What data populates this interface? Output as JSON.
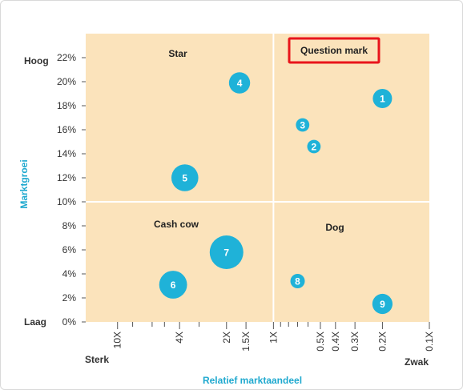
{
  "chart_data": {
    "type": "scatter",
    "subtype": "bubble-matrix",
    "xlabel": "Relatief marktaandeel",
    "ylabel": "Marktgroei",
    "x_axis": {
      "scale": "log",
      "reversed": true,
      "tick_labels": [
        "10X",
        "4X",
        "2X",
        "1.5X",
        "1X",
        "0.5X",
        "0.4X",
        "0.3X",
        "0.2X",
        "0.1X"
      ],
      "tick_values": [
        10,
        4,
        2,
        1.5,
        1,
        0.5,
        0.4,
        0.3,
        0.2,
        0.1
      ],
      "minor_ticks": [
        8,
        6,
        5,
        3,
        0.9,
        0.8,
        0.7,
        0.6
      ],
      "xlim": [
        16,
        0.1
      ],
      "divider": 1,
      "left_end_label": "Sterk",
      "right_end_label": "Zwak"
    },
    "y_axis": {
      "tick_labels": [
        "0%",
        "2%",
        "4%",
        "6%",
        "8%",
        "10%",
        "12%",
        "14%",
        "16%",
        "18%",
        "20%",
        "22%"
      ],
      "tick_values": [
        0,
        2,
        4,
        6,
        8,
        10,
        12,
        14,
        16,
        18,
        20,
        22
      ],
      "ylim": [
        0,
        24
      ],
      "divider": 10,
      "top_end_label": "Hoog",
      "bottom_end_label": "Laag"
    },
    "quadrants": [
      {
        "key": "star",
        "label": "Star",
        "highlighted": false
      },
      {
        "key": "question",
        "label": "Question mark",
        "highlighted": true
      },
      {
        "key": "cashcow",
        "label": "Cash cow",
        "highlighted": false
      },
      {
        "key": "dog",
        "label": "Dog",
        "highlighted": false
      }
    ],
    "points": [
      {
        "label": "1",
        "x": 0.2,
        "y": 18.6,
        "size": 1.0
      },
      {
        "label": "2",
        "x": 0.55,
        "y": 14.6,
        "size": 0.7
      },
      {
        "label": "3",
        "x": 0.65,
        "y": 16.4,
        "size": 0.7
      },
      {
        "label": "4",
        "x": 1.65,
        "y": 19.9,
        "size": 1.1
      },
      {
        "label": "5",
        "x": 3.7,
        "y": 12.0,
        "size": 1.4
      },
      {
        "label": "6",
        "x": 4.4,
        "y": 3.1,
        "size": 1.45
      },
      {
        "label": "7",
        "x": 2.0,
        "y": 5.8,
        "size": 1.75
      },
      {
        "label": "8",
        "x": 0.7,
        "y": 3.4,
        "size": 0.75
      },
      {
        "label": "9",
        "x": 0.2,
        "y": 1.5,
        "size": 1.05
      }
    ],
    "colors": {
      "plot_background": "#fbe3bb",
      "bubble": "#1fb2d8",
      "axis_title": "#1fa9cf",
      "highlight_border": "#e8151b"
    }
  }
}
